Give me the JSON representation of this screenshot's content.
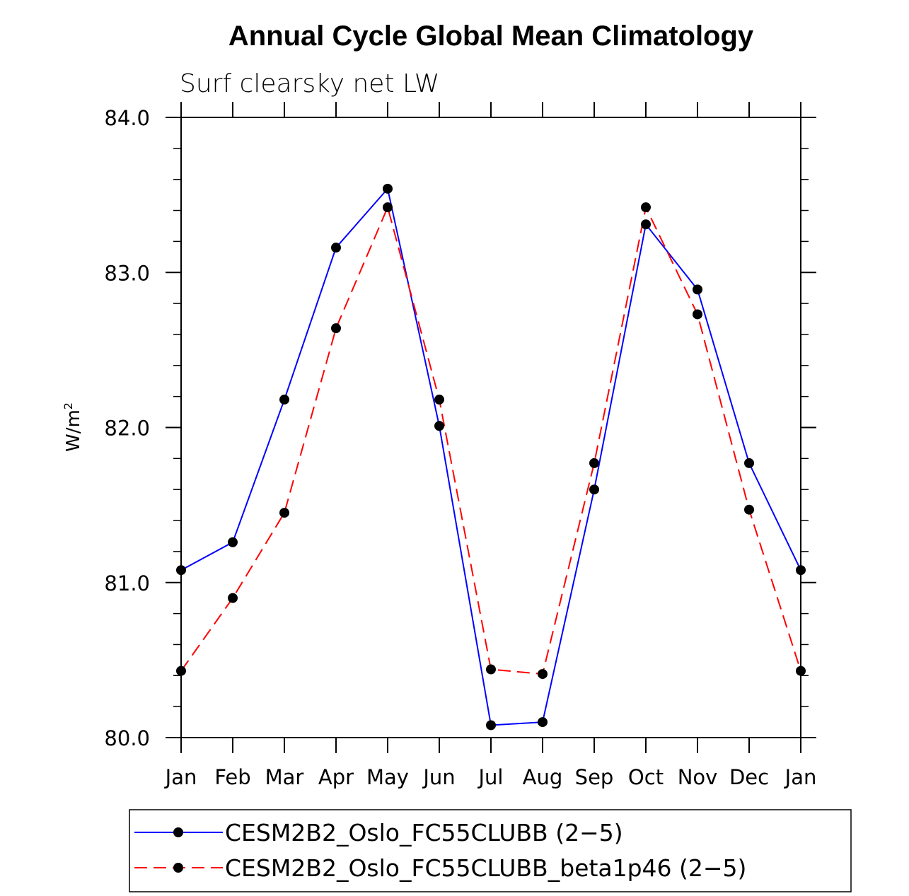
{
  "chart_data": {
    "type": "line",
    "title": "Annual Cycle Global Mean Climatology",
    "subtitle": "Surf clearsky net LW",
    "xlabel": "",
    "ylabel": "W/m",
    "ylabel_superscript": "2",
    "categories": [
      "Jan",
      "Feb",
      "Mar",
      "Apr",
      "May",
      "Jun",
      "Jul",
      "Aug",
      "Sep",
      "Oct",
      "Nov",
      "Dec",
      "Jan"
    ],
    "ylim": [
      80.0,
      84.0
    ],
    "yticks": [
      "80.0",
      "81.0",
      "82.0",
      "83.0",
      "84.0"
    ],
    "grid": false,
    "legend_position": "bottom",
    "series": [
      {
        "name": "CESM2B2_Oslo_FC55CLUBB (2−5)",
        "color": "#0000ff",
        "dash": "solid",
        "values": [
          81.08,
          81.26,
          82.18,
          83.16,
          83.54,
          82.01,
          80.08,
          80.1,
          81.6,
          83.31,
          82.89,
          81.77,
          81.08
        ]
      },
      {
        "name": "CESM2B2_Oslo_FC55CLUBB_beta1p46 (2−5)",
        "color": "#ff0000",
        "dash": "dashed",
        "values": [
          80.43,
          80.9,
          81.45,
          82.64,
          83.42,
          82.18,
          80.44,
          80.41,
          81.77,
          83.42,
          82.73,
          81.47,
          80.43
        ]
      }
    ]
  }
}
